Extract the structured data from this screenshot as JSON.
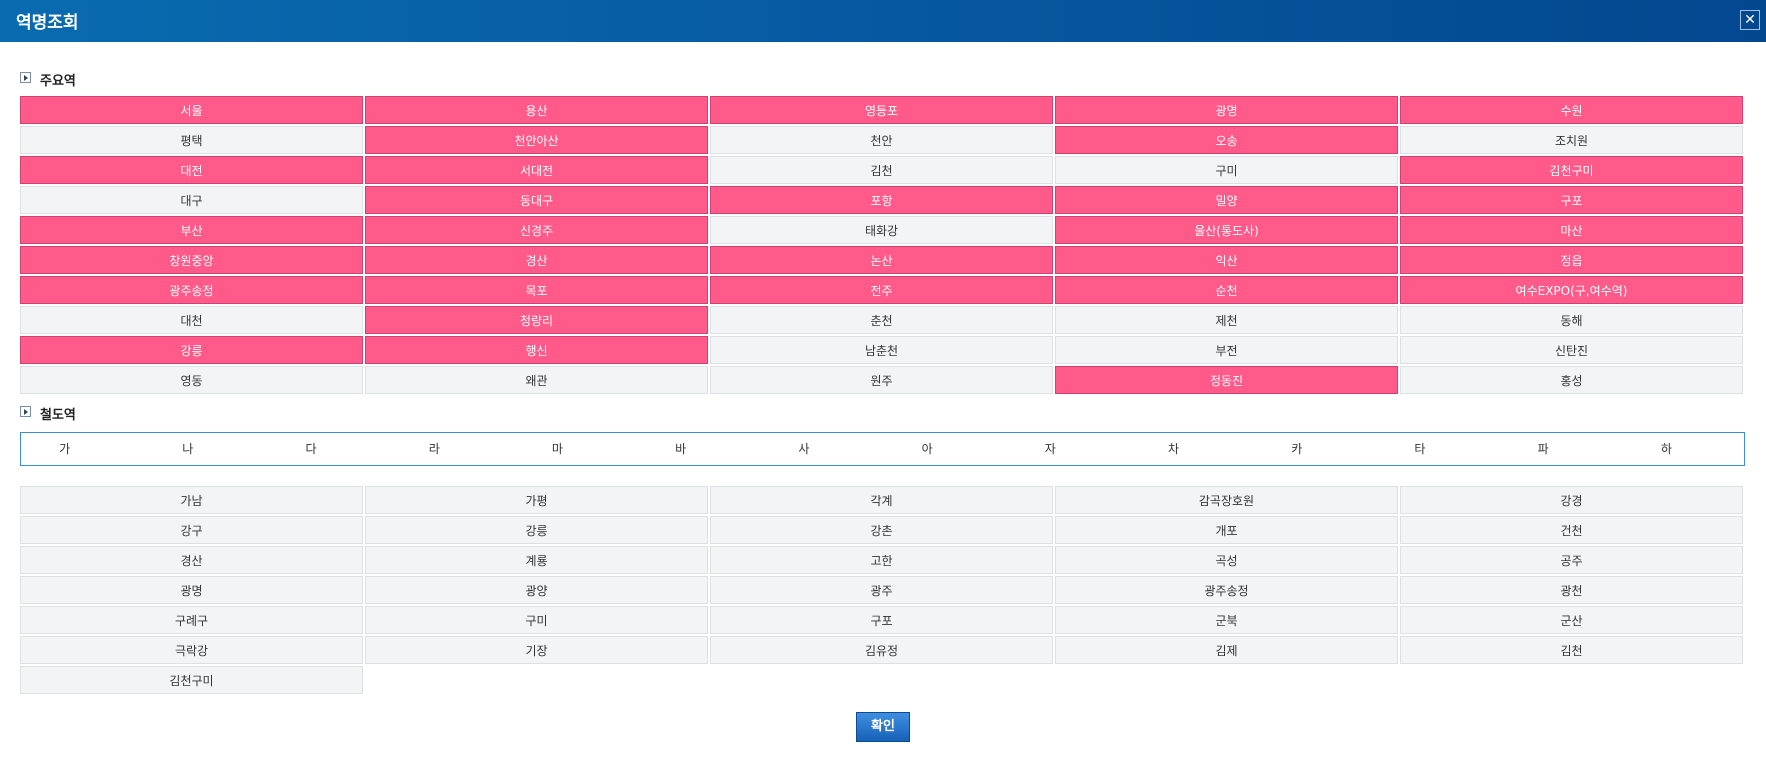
{
  "header": {
    "title": "역명조회"
  },
  "major": {
    "title": "주요역",
    "stations": [
      {
        "name": "서울",
        "highlighted": true
      },
      {
        "name": "용산",
        "highlighted": true
      },
      {
        "name": "영등포",
        "highlighted": true
      },
      {
        "name": "광명",
        "highlighted": true
      },
      {
        "name": "수원",
        "highlighted": true
      },
      {
        "name": "평택",
        "highlighted": false
      },
      {
        "name": "천안아산",
        "highlighted": true
      },
      {
        "name": "천안",
        "highlighted": false
      },
      {
        "name": "오송",
        "highlighted": true
      },
      {
        "name": "조치원",
        "highlighted": false
      },
      {
        "name": "대전",
        "highlighted": true
      },
      {
        "name": "서대전",
        "highlighted": true
      },
      {
        "name": "김천",
        "highlighted": false
      },
      {
        "name": "구미",
        "highlighted": false
      },
      {
        "name": "김천구미",
        "highlighted": true
      },
      {
        "name": "대구",
        "highlighted": false
      },
      {
        "name": "동대구",
        "highlighted": true
      },
      {
        "name": "포항",
        "highlighted": true
      },
      {
        "name": "밀양",
        "highlighted": true
      },
      {
        "name": "구포",
        "highlighted": true
      },
      {
        "name": "부산",
        "highlighted": true
      },
      {
        "name": "신경주",
        "highlighted": true
      },
      {
        "name": "태화강",
        "highlighted": false
      },
      {
        "name": "울산(통도사)",
        "highlighted": true
      },
      {
        "name": "마산",
        "highlighted": true
      },
      {
        "name": "창원중앙",
        "highlighted": true
      },
      {
        "name": "경산",
        "highlighted": true
      },
      {
        "name": "논산",
        "highlighted": true
      },
      {
        "name": "익산",
        "highlighted": true
      },
      {
        "name": "정읍",
        "highlighted": true
      },
      {
        "name": "광주송정",
        "highlighted": true
      },
      {
        "name": "목포",
        "highlighted": true
      },
      {
        "name": "전주",
        "highlighted": true
      },
      {
        "name": "순천",
        "highlighted": true
      },
      {
        "name": "여수EXPO(구,여수역)",
        "highlighted": true
      },
      {
        "name": "대천",
        "highlighted": false
      },
      {
        "name": "청량리",
        "highlighted": true
      },
      {
        "name": "춘천",
        "highlighted": false
      },
      {
        "name": "제천",
        "highlighted": false
      },
      {
        "name": "동해",
        "highlighted": false
      },
      {
        "name": "강릉",
        "highlighted": true
      },
      {
        "name": "행신",
        "highlighted": true
      },
      {
        "name": "남춘천",
        "highlighted": false
      },
      {
        "name": "부전",
        "highlighted": false
      },
      {
        "name": "신탄진",
        "highlighted": false
      },
      {
        "name": "영동",
        "highlighted": false
      },
      {
        "name": "왜관",
        "highlighted": false
      },
      {
        "name": "원주",
        "highlighted": false
      },
      {
        "name": "정동진",
        "highlighted": true
      },
      {
        "name": "홍성",
        "highlighted": false
      }
    ]
  },
  "railway": {
    "title": "철도역",
    "index": [
      "가",
      "나",
      "다",
      "라",
      "마",
      "바",
      "사",
      "아",
      "자",
      "차",
      "카",
      "타",
      "파",
      "하"
    ],
    "stations": [
      "가남",
      "가평",
      "각계",
      "감곡장호원",
      "강경",
      "강구",
      "강릉",
      "강촌",
      "개포",
      "건천",
      "경산",
      "계룡",
      "고한",
      "곡성",
      "공주",
      "광명",
      "광양",
      "광주",
      "광주송정",
      "광천",
      "구례구",
      "구미",
      "구포",
      "군북",
      "군산",
      "극락강",
      "기장",
      "김유정",
      "김제",
      "김천",
      "김천구미"
    ]
  },
  "confirm": "확인"
}
